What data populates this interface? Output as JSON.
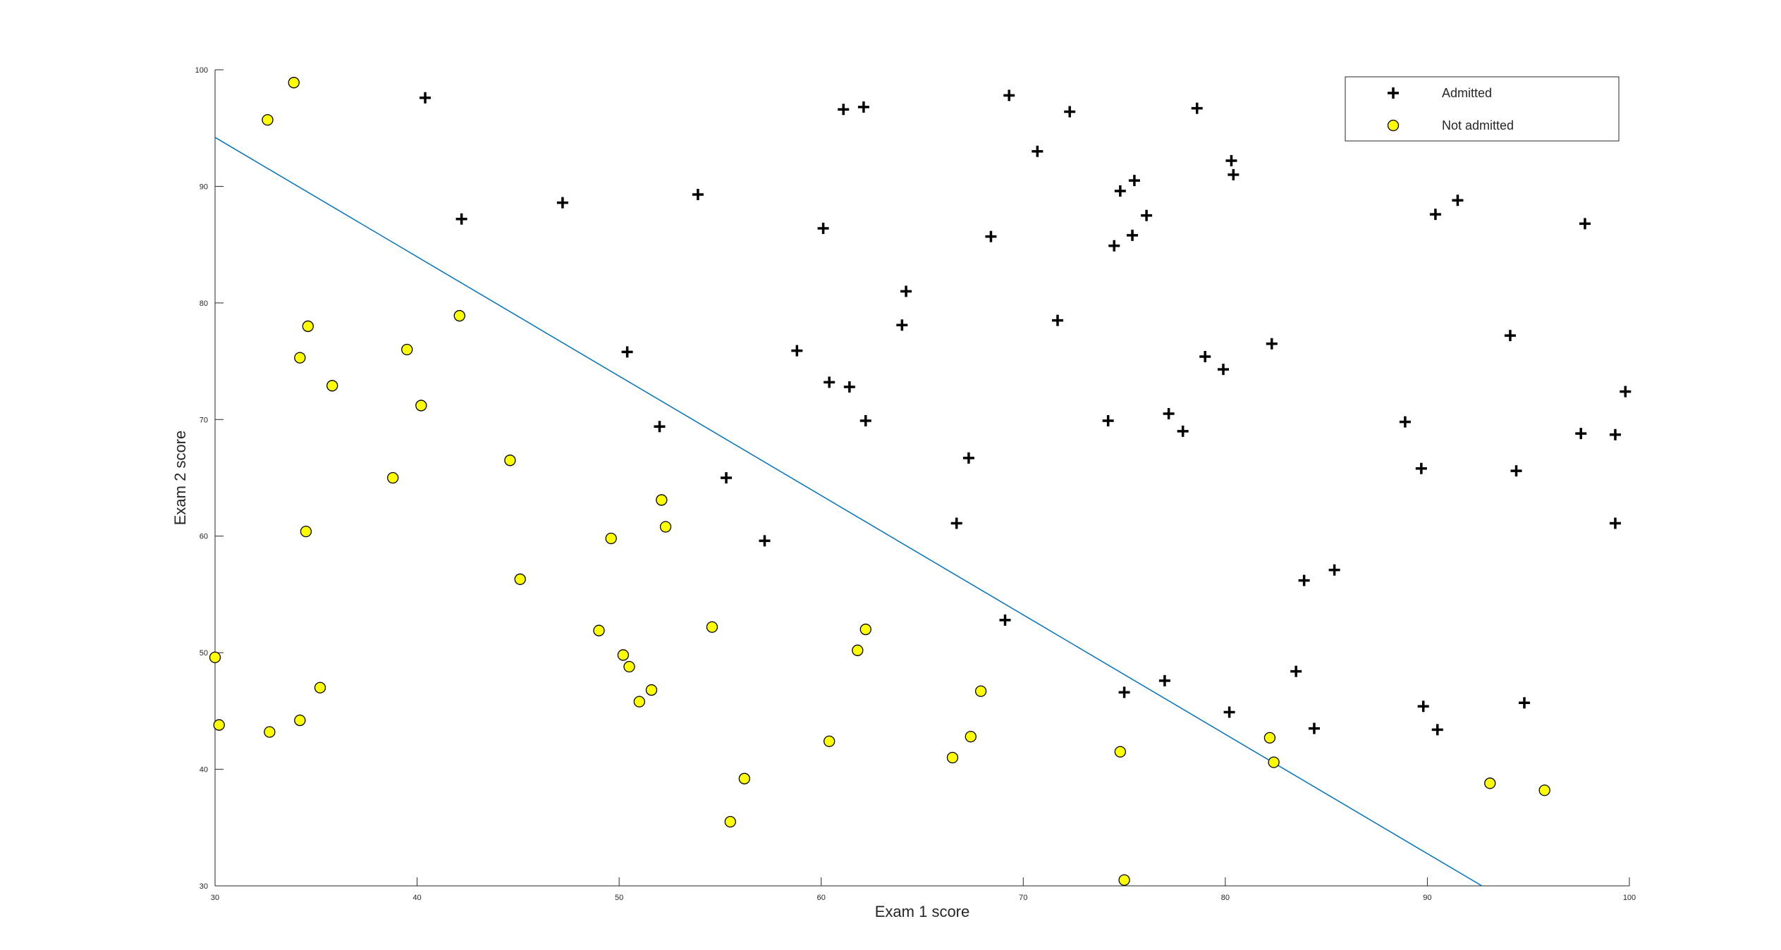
{
  "chart_data": {
    "type": "scatter",
    "xlabel": "Exam 1 score",
    "ylabel": "Exam 2 score",
    "xlim": [
      30,
      100
    ],
    "ylim": [
      30,
      100
    ],
    "xticks": [
      30,
      40,
      50,
      60,
      70,
      80,
      90,
      100
    ],
    "yticks": [
      30,
      40,
      50,
      60,
      70,
      80,
      90,
      100
    ],
    "legend": "upper right",
    "series": [
      {
        "name": "Admitted",
        "marker": "plus",
        "color": "#000000",
        "x": [
          40.4,
          42.2,
          47.2,
          50.4,
          52.0,
          53.9,
          55.3,
          57.2,
          58.8,
          60.1,
          60.4,
          61.1,
          61.4,
          62.1,
          62.2,
          64.0,
          64.2,
          66.7,
          67.3,
          68.4,
          69.1,
          69.3,
          70.7,
          71.7,
          72.3,
          74.2,
          74.5,
          74.8,
          75.0,
          75.4,
          75.5,
          76.1,
          77.0,
          77.2,
          77.9,
          78.6,
          79.0,
          79.9,
          80.2,
          80.3,
          80.4,
          82.3,
          83.5,
          83.9,
          84.4,
          85.4,
          88.9,
          89.7,
          89.8,
          90.4,
          90.5,
          91.5,
          94.1,
          94.4,
          94.8,
          97.6,
          97.8,
          99.3,
          99.3,
          99.8
        ],
        "values": [
          97.6,
          87.2,
          88.6,
          75.8,
          69.4,
          89.3,
          65.0,
          59.6,
          75.9,
          86.4,
          73.2,
          96.6,
          72.8,
          96.8,
          69.9,
          78.1,
          81.0,
          61.1,
          66.7,
          85.7,
          52.8,
          97.8,
          93.0,
          78.5,
          96.4,
          69.9,
          84.9,
          89.6,
          46.6,
          85.8,
          90.5,
          87.5,
          47.6,
          70.5,
          69.0,
          96.7,
          75.4,
          74.3,
          44.9,
          92.2,
          91.0,
          76.5,
          48.4,
          56.2,
          43.5,
          57.1,
          69.8,
          65.8,
          45.4,
          87.6,
          43.4,
          88.8,
          77.2,
          65.6,
          45.7,
          68.8,
          86.8,
          61.1,
          68.7,
          72.4
        ]
      },
      {
        "name": "Not admitted",
        "marker": "circle",
        "color": "#ffff00",
        "x": [
          33.9,
          32.6,
          34.6,
          34.2,
          35.8,
          42.1,
          39.5,
          40.2,
          38.8,
          44.6,
          34.5,
          45.1,
          49.6,
          52.1,
          52.3,
          30.0,
          30.2,
          32.7,
          34.2,
          35.2,
          49.0,
          50.2,
          50.5,
          51.6,
          51.0,
          54.6,
          62.2,
          61.8,
          60.4,
          56.2,
          55.5,
          66.5,
          67.4,
          67.9,
          74.8,
          75.0,
          82.2,
          82.4,
          93.1,
          95.8
        ],
        "values": [
          98.9,
          95.7,
          78.0,
          75.3,
          72.9,
          78.9,
          76.0,
          71.2,
          65.0,
          66.5,
          60.4,
          56.3,
          59.8,
          63.1,
          60.8,
          49.6,
          43.8,
          43.2,
          44.2,
          47.0,
          51.9,
          49.8,
          48.8,
          46.8,
          45.8,
          52.2,
          52.0,
          50.2,
          42.4,
          39.2,
          35.5,
          41.0,
          42.8,
          46.7,
          41.5,
          30.5,
          42.7,
          40.6,
          38.8,
          38.2
        ]
      }
    ],
    "boundary": {
      "color": "#0072bd",
      "x": [
        30,
        92.7
      ],
      "values": [
        94.2,
        30
      ]
    }
  }
}
